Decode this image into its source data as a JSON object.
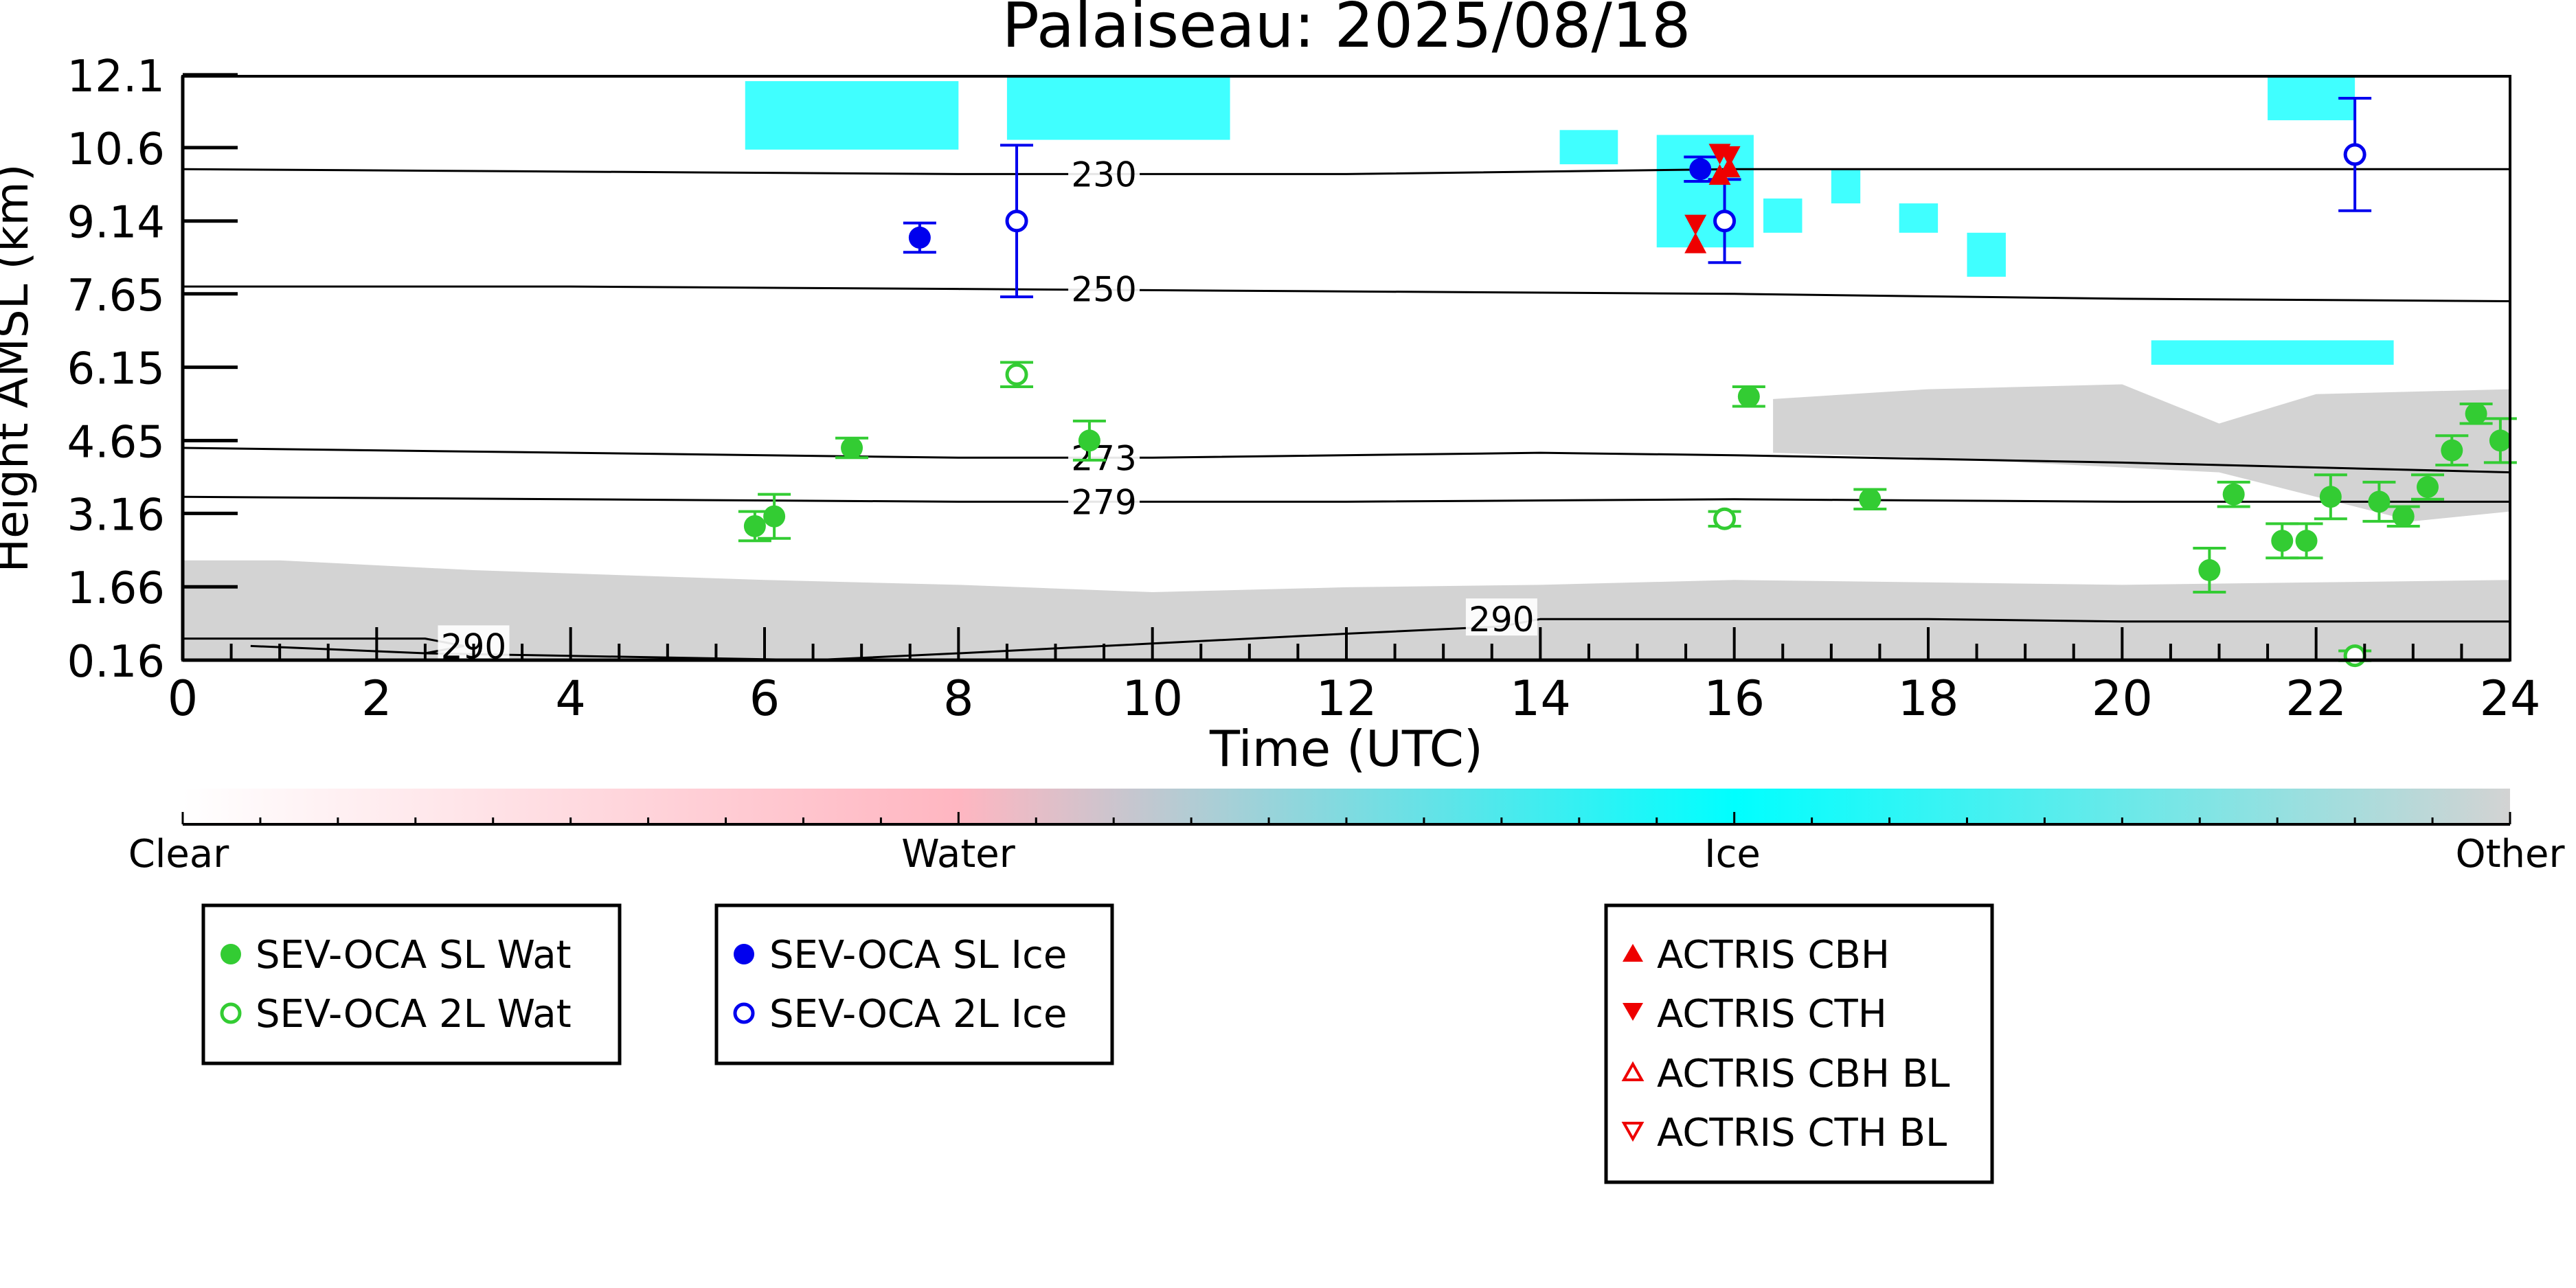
{
  "chart_data": {
    "type": "scatter",
    "title": "Palaiseau: 2025/08/18",
    "xlabel": "Time (UTC)",
    "ylabel": "Height AMSL (km)",
    "xlim": [
      0,
      24
    ],
    "ylim": [
      0.16,
      12.1
    ],
    "x_ticks": [
      0,
      2,
      4,
      6,
      8,
      10,
      12,
      14,
      16,
      18,
      20,
      22,
      24
    ],
    "y_ticks": [
      "0.16",
      "1.66",
      "3.16",
      "4.65",
      "6.15",
      "7.65",
      "9.14",
      "10.6",
      "12.1"
    ],
    "y_tick_values": [
      0.16,
      1.66,
      3.16,
      4.65,
      6.15,
      7.65,
      9.14,
      10.64,
      12.13
    ],
    "background_classification": {
      "colorbar_labels": [
        "Clear",
        "Water",
        "Ice",
        "Other"
      ],
      "colors": {
        "clear": "#ffffff",
        "water": "#ffb6c1",
        "ice": "#00ffff",
        "other": "#d3d3d3"
      },
      "other_layer": [
        [
          0,
          2.2
        ],
        [
          1,
          2.2
        ],
        [
          3,
          2.0
        ],
        [
          6,
          1.8
        ],
        [
          8,
          1.7
        ],
        [
          10,
          1.55
        ],
        [
          12,
          1.65
        ],
        [
          14,
          1.7
        ],
        [
          16,
          1.8
        ],
        [
          18,
          1.75
        ],
        [
          20,
          1.7
        ],
        [
          22,
          1.75
        ],
        [
          24,
          1.8
        ]
      ],
      "other_upper_layer": [
        [
          16.4,
          5.5
        ],
        [
          18,
          5.7
        ],
        [
          20,
          5.8
        ],
        [
          21,
          5.0
        ],
        [
          22,
          5.6
        ],
        [
          24,
          5.7
        ],
        [
          24,
          3.2
        ],
        [
          23,
          3.0
        ],
        [
          22,
          3.5
        ],
        [
          21,
          4.0
        ],
        [
          20,
          4.1
        ],
        [
          18,
          4.3
        ],
        [
          16.4,
          4.4
        ]
      ],
      "ice_patches": [
        {
          "x0": 5.8,
          "x1": 8.0,
          "y0": 10.6,
          "y1": 12.0
        },
        {
          "x0": 8.5,
          "x1": 10.8,
          "y0": 10.8,
          "y1": 12.1
        },
        {
          "x0": 14.2,
          "x1": 14.8,
          "y0": 10.3,
          "y1": 11.0
        },
        {
          "x0": 15.2,
          "x1": 16.2,
          "y0": 8.6,
          "y1": 10.9
        },
        {
          "x0": 16.3,
          "x1": 16.7,
          "y0": 8.9,
          "y1": 9.6
        },
        {
          "x0": 17.0,
          "x1": 17.3,
          "y0": 9.5,
          "y1": 10.2
        },
        {
          "x0": 17.7,
          "x1": 18.1,
          "y0": 8.9,
          "y1": 9.5
        },
        {
          "x0": 18.4,
          "x1": 18.8,
          "y0": 8.0,
          "y1": 8.9
        },
        {
          "x0": 21.5,
          "x1": 22.4,
          "y0": 11.2,
          "y1": 12.1
        },
        {
          "x0": 20.3,
          "x1": 22.8,
          "y0": 6.2,
          "y1": 6.7
        }
      ]
    },
    "isotherms": [
      {
        "label": "230",
        "label_x": 9.5,
        "points": [
          [
            0,
            10.2
          ],
          [
            4,
            10.15
          ],
          [
            8,
            10.1
          ],
          [
            12,
            10.1
          ],
          [
            16,
            10.2
          ],
          [
            20,
            10.2
          ],
          [
            24,
            10.2
          ]
        ]
      },
      {
        "label": "250",
        "label_x": 9.5,
        "points": [
          [
            0,
            7.8
          ],
          [
            4,
            7.8
          ],
          [
            8,
            7.75
          ],
          [
            12,
            7.7
          ],
          [
            16,
            7.65
          ],
          [
            20,
            7.55
          ],
          [
            24,
            7.5
          ]
        ]
      },
      {
        "label": "273",
        "label_x": 9.5,
        "points": [
          [
            0,
            4.5
          ],
          [
            4,
            4.4
          ],
          [
            8,
            4.3
          ],
          [
            10,
            4.3
          ],
          [
            14,
            4.4
          ],
          [
            16,
            4.35
          ],
          [
            20,
            4.2
          ],
          [
            24,
            4.0
          ]
        ]
      },
      {
        "label": "279",
        "label_x": 9.5,
        "points": [
          [
            0,
            3.5
          ],
          [
            4,
            3.45
          ],
          [
            8,
            3.4
          ],
          [
            12,
            3.4
          ],
          [
            16,
            3.45
          ],
          [
            20,
            3.4
          ],
          [
            24,
            3.4
          ]
        ]
      },
      {
        "label": "290",
        "label_x": 3.0,
        "points": [
          [
            0,
            0.6
          ],
          [
            2.5,
            0.6
          ],
          [
            2.9,
            0.45
          ],
          [
            2.5,
            0.3
          ],
          [
            0.7,
            0.45
          ],
          [
            2.5,
            0.3
          ],
          [
            6.5,
            0.16
          ],
          [
            8,
            0.3
          ],
          [
            10,
            0.5
          ],
          [
            12,
            0.7
          ],
          [
            13.6,
            0.85
          ],
          [
            14,
            1.0
          ],
          [
            16,
            1.0
          ],
          [
            18,
            1.0
          ],
          [
            20,
            0.95
          ],
          [
            24,
            0.95
          ]
        ]
      },
      {
        "label": "290",
        "label_x": 13.6,
        "points": []
      }
    ],
    "series": [
      {
        "name": "SEV-OCA SL Wat",
        "color": "#33cc33",
        "marker": "filled-circle",
        "points": [
          {
            "x": 5.9,
            "y": 2.9,
            "yerr": 0.3
          },
          {
            "x": 6.1,
            "y": 3.1,
            "yerr": 0.45
          },
          {
            "x": 6.9,
            "y": 4.5,
            "yerr": 0.2
          },
          {
            "x": 9.35,
            "y": 4.65,
            "yerr": 0.4
          },
          {
            "x": 16.15,
            "y": 5.55,
            "yerr": 0.2
          },
          {
            "x": 17.4,
            "y": 3.45,
            "yerr": 0.2
          },
          {
            "x": 20.9,
            "y": 2.0,
            "yerr": 0.45
          },
          {
            "x": 21.15,
            "y": 3.55,
            "yerr": 0.25
          },
          {
            "x": 21.65,
            "y": 2.6,
            "yerr": 0.35
          },
          {
            "x": 21.9,
            "y": 2.6,
            "yerr": 0.35
          },
          {
            "x": 22.15,
            "y": 3.5,
            "yerr": 0.45
          },
          {
            "x": 22.65,
            "y": 3.4,
            "yerr": 0.4
          },
          {
            "x": 22.9,
            "y": 3.1,
            "yerr": 0.2
          },
          {
            "x": 23.15,
            "y": 3.7,
            "yerr": 0.25
          },
          {
            "x": 23.4,
            "y": 4.45,
            "yerr": 0.3
          },
          {
            "x": 23.65,
            "y": 5.2,
            "yerr": 0.2
          },
          {
            "x": 23.9,
            "y": 4.65,
            "yerr": 0.45
          }
        ]
      },
      {
        "name": "SEV-OCA 2L Wat",
        "color": "#33cc33",
        "marker": "open-circle",
        "points": [
          {
            "x": 8.6,
            "y": 6.0,
            "yerr": 0.25
          },
          {
            "x": 15.9,
            "y": 3.05,
            "yerr": 0.15
          },
          {
            "x": 22.4,
            "y": 0.25,
            "yerr": 0.1
          }
        ]
      },
      {
        "name": "SEV-OCA SL Ice",
        "color": "#0000ee",
        "marker": "filled-circle",
        "points": [
          {
            "x": 7.6,
            "y": 8.8,
            "yerr": 0.3
          },
          {
            "x": 15.65,
            "y": 10.2,
            "yerr": 0.25
          }
        ]
      },
      {
        "name": "SEV-OCA 2L Ice",
        "color": "#0000ee",
        "marker": "open-circle",
        "points": [
          {
            "x": 8.6,
            "y": 9.14,
            "yerr": 1.55
          },
          {
            "x": 15.9,
            "y": 9.14,
            "yerr": 0.85
          },
          {
            "x": 22.4,
            "y": 10.5,
            "yerr": 1.15
          }
        ]
      },
      {
        "name": "ACTRIS CBH",
        "color": "#ee0000",
        "marker": "triangle-up",
        "points": [
          {
            "x": 15.6,
            "y": 8.65
          },
          {
            "x": 15.85,
            "y": 10.05
          },
          {
            "x": 15.95,
            "y": 10.2
          }
        ]
      },
      {
        "name": "ACTRIS CTH",
        "color": "#ee0000",
        "marker": "triangle-down",
        "points": [
          {
            "x": 15.6,
            "y": 9.1
          },
          {
            "x": 15.85,
            "y": 10.55
          },
          {
            "x": 15.95,
            "y": 10.5
          }
        ]
      },
      {
        "name": "ACTRIS CBH BL",
        "color": "#ee0000",
        "marker": "open-triangle-up",
        "points": []
      },
      {
        "name": "ACTRIS CTH BL",
        "color": "#ee0000",
        "marker": "open-triangle-down",
        "points": []
      }
    ],
    "legends": [
      {
        "position": "bottom-left",
        "entries": [
          "SEV-OCA SL Wat",
          "SEV-OCA 2L Wat"
        ]
      },
      {
        "position": "bottom-left-center",
        "entries": [
          "SEV-OCA SL Ice",
          "SEV-OCA 2L Ice"
        ]
      },
      {
        "position": "bottom-right-center",
        "entries": [
          "ACTRIS CBH",
          "ACTRIS CTH",
          "ACTRIS CBH BL",
          "ACTRIS CTH BL"
        ]
      }
    ],
    "grid": false
  }
}
